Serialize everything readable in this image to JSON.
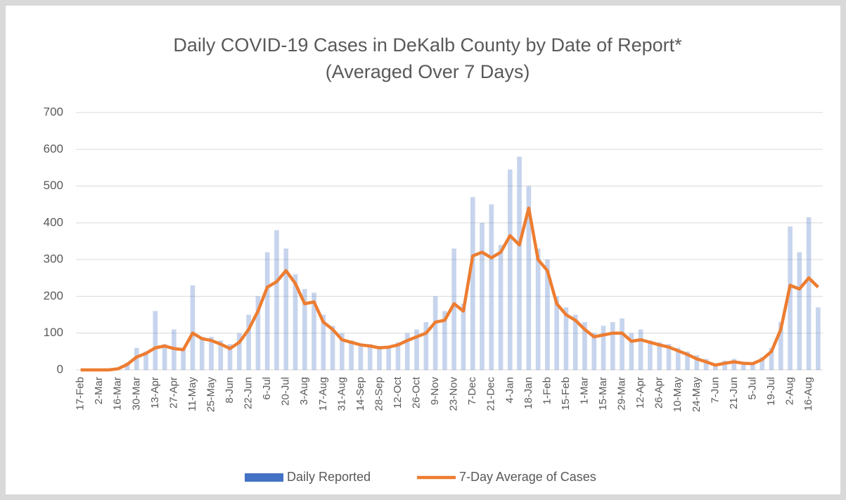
{
  "chart_data": {
    "type": "bar_line",
    "title": "Daily COVID-19 Cases in DeKalb County by Date of Report*",
    "subtitle": "(Averaged Over 7 Days)",
    "categories": [
      "17-Feb",
      null,
      "2-Mar",
      null,
      "16-Mar",
      null,
      "30-Mar",
      null,
      "13-Apr",
      null,
      "27-Apr",
      null,
      "11-May",
      null,
      "25-May",
      null,
      "8-Jun",
      null,
      "22-Jun",
      null,
      "6-Jul",
      null,
      "20-Jul",
      null,
      "3-Aug",
      null,
      "17-Aug",
      null,
      "31-Aug",
      null,
      "14-Sep",
      null,
      "28-Sep",
      null,
      "12-Oct",
      null,
      "26-Oct",
      null,
      "9-Nov",
      null,
      "23-Nov",
      null,
      "7-Dec",
      null,
      "21-Dec",
      null,
      "4-Jan",
      null,
      "18-Jan",
      null,
      "1-Feb",
      null,
      "15-Feb",
      null,
      "1-Mar",
      null,
      "15-Mar",
      null,
      "29-Mar",
      null,
      "12-Apr",
      null,
      "26-Apr",
      null,
      "10-May",
      null,
      "24-May",
      null,
      "7-Jun",
      null,
      "21-Jun",
      null,
      "5-Jul",
      null,
      "19-Jul",
      null,
      "2-Aug",
      null,
      "16-Aug",
      null
    ],
    "series": [
      {
        "name": "Daily Reported",
        "color": "#4472c4",
        "kind": "bar",
        "values": [
          0,
          1,
          0,
          0,
          5,
          20,
          60,
          50,
          160,
          70,
          110,
          60,
          230,
          90,
          90,
          80,
          70,
          100,
          150,
          200,
          320,
          380,
          330,
          260,
          220,
          210,
          150,
          120,
          100,
          80,
          70,
          70,
          65,
          60,
          75,
          100,
          110,
          130,
          200,
          160,
          330,
          180,
          470,
          400,
          450,
          340,
          545,
          580,
          500,
          330,
          300,
          200,
          170,
          150,
          130,
          100,
          120,
          130,
          140,
          100,
          110,
          80,
          75,
          70,
          60,
          50,
          40,
          30,
          15,
          25,
          30,
          20,
          20,
          35,
          60,
          130,
          390,
          320,
          415,
          170
        ]
      },
      {
        "name": "7-Day Average of Cases",
        "color": "#ed7d31",
        "kind": "line",
        "values": [
          0,
          0,
          0,
          0,
          3,
          15,
          35,
          45,
          60,
          65,
          58,
          55,
          100,
          85,
          80,
          70,
          58,
          75,
          110,
          160,
          225,
          240,
          270,
          235,
          180,
          185,
          130,
          110,
          82,
          75,
          68,
          65,
          60,
          62,
          68,
          80,
          90,
          100,
          130,
          135,
          180,
          160,
          310,
          320,
          305,
          320,
          365,
          340,
          440,
          300,
          270,
          180,
          150,
          135,
          110,
          90,
          95,
          100,
          100,
          78,
          82,
          75,
          68,
          62,
          52,
          42,
          30,
          22,
          13,
          18,
          22,
          18,
          17,
          28,
          50,
          110,
          230,
          220,
          250,
          225
        ]
      }
    ],
    "ylim": [
      0,
      700
    ],
    "yticks": [
      0,
      100,
      200,
      300,
      400,
      500,
      600,
      700
    ],
    "grid": true,
    "legend": "bottom"
  }
}
